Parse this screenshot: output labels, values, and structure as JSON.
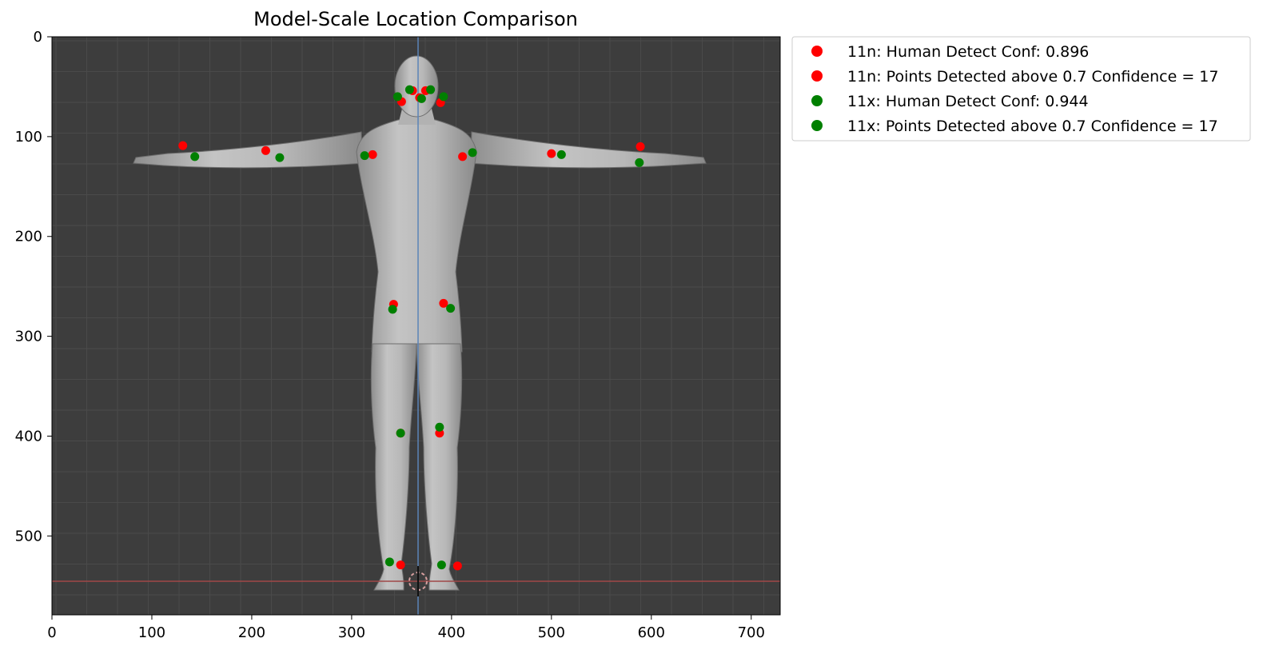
{
  "chart_data": {
    "type": "scatter",
    "title": "Model-Scale Location Comparison",
    "xlabel": "",
    "ylabel": "",
    "xlim": [
      0,
      729
    ],
    "ylim": [
      579,
      0
    ],
    "y_axis_inverted": true,
    "xticks": [
      0,
      100,
      200,
      300,
      400,
      500,
      600,
      700
    ],
    "yticks": [
      0,
      100,
      200,
      300,
      400,
      500
    ],
    "background_image": "human-figure-t-pose-3d-viewport",
    "grid": false,
    "legend_placement": "outside-upper-right",
    "series": [
      {
        "name": "11n: Human Detect Conf: 0.896",
        "color": "#ff0000",
        "points": []
      },
      {
        "name": "11n: Points Detected above 0.7 Confidence = 17",
        "color": "#ff0000",
        "points": [
          [
            368,
            61
          ],
          [
            361,
            54
          ],
          [
            374,
            54
          ],
          [
            350,
            65
          ],
          [
            389,
            66
          ],
          [
            321,
            118
          ],
          [
            411,
            120
          ],
          [
            214,
            114
          ],
          [
            500,
            117
          ],
          [
            131,
            109
          ],
          [
            589,
            110
          ],
          [
            342,
            268
          ],
          [
            392,
            267
          ],
          [
            349,
            397
          ],
          [
            388,
            397
          ],
          [
            349,
            529
          ],
          [
            406,
            530
          ]
        ]
      },
      {
        "name": "11x: Human Detect Conf: 0.944",
        "color": "#008000",
        "points": []
      },
      {
        "name": "11x: Points Detected above 0.7 Confidence = 17",
        "color": "#008000",
        "points": [
          [
            370,
            62
          ],
          [
            358,
            53
          ],
          [
            379,
            53
          ],
          [
            346,
            60
          ],
          [
            392,
            60
          ],
          [
            313,
            119
          ],
          [
            421,
            116
          ],
          [
            228,
            121
          ],
          [
            510,
            118
          ],
          [
            143,
            120
          ],
          [
            588,
            126
          ],
          [
            341,
            273
          ],
          [
            399,
            272
          ],
          [
            349,
            397
          ],
          [
            388,
            391
          ],
          [
            338,
            526
          ],
          [
            390,
            529
          ]
        ]
      }
    ]
  }
}
